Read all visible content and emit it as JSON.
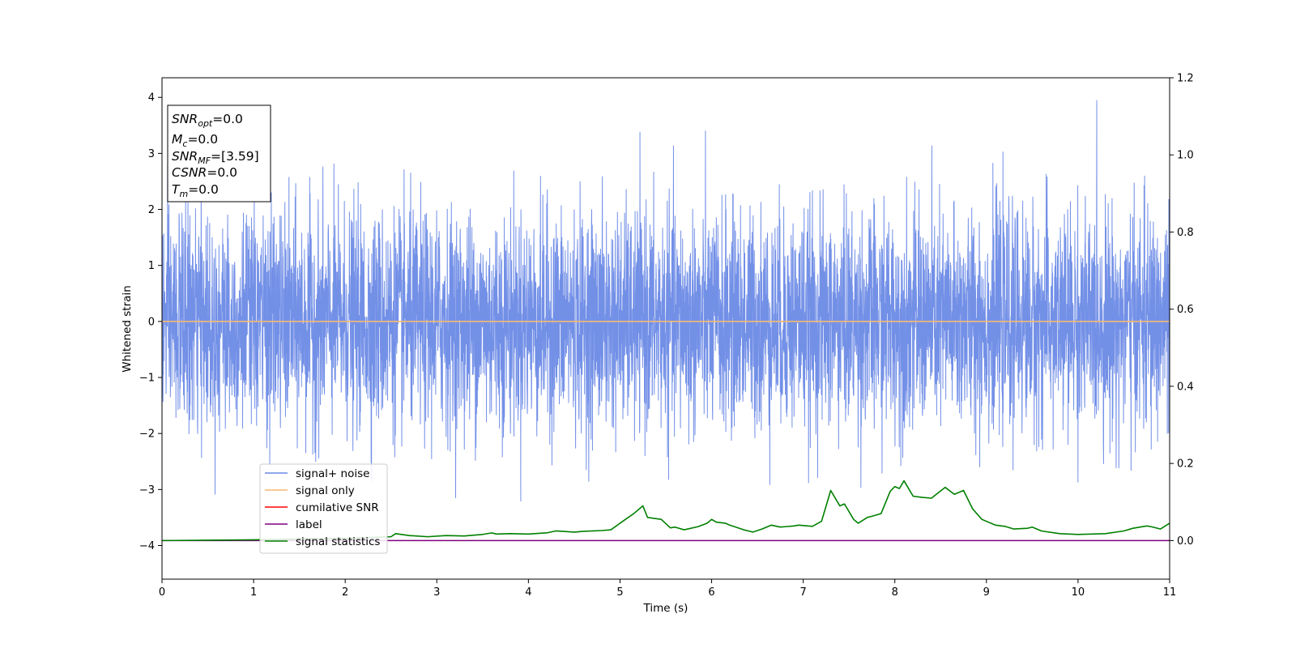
{
  "chart_data": {
    "type": "line",
    "xlabel": "Time (s)",
    "ylabel": "Whitened strain",
    "xlim": [
      0,
      11
    ],
    "ylim_left": [
      -4.6,
      4.35
    ],
    "ylim_right": [
      -0.1,
      1.2
    ],
    "x_ticks": [
      0,
      1,
      2,
      3,
      4,
      5,
      6,
      7,
      8,
      9,
      10,
      11
    ],
    "y_ticks_left": [
      -4,
      -3,
      -2,
      -1,
      0,
      1,
      2,
      3,
      4
    ],
    "y_ticks_right": [
      0.0,
      0.2,
      0.4,
      0.6,
      0.8,
      1.0,
      1.2
    ],
    "grid": false,
    "legend_position": "lower-left",
    "info_box": [
      {
        "base": "SNR",
        "sub": "opt",
        "value": "=0.0"
      },
      {
        "base": "M",
        "sub": "c",
        "value": "=0.0"
      },
      {
        "base": "SNR",
        "sub": "MF",
        "value": "=[3.59]"
      },
      {
        "base": "CSNR",
        "sub": "",
        "value": "=0.0"
      },
      {
        "base": "T",
        "sub": "m",
        "value": "=0.0"
      }
    ],
    "series": [
      {
        "name": "signal+ noise",
        "axis": "left",
        "color": "#6b8ae6",
        "description_values": {
          "mean": 0.0,
          "std": 0.95,
          "min": -4.15,
          "max": 3.95
        }
      },
      {
        "name": "signal only",
        "axis": "left",
        "color": "#f5b971",
        "x": [
          0,
          11
        ],
        "y": [
          0,
          0
        ]
      },
      {
        "name": "cumilative SNR",
        "axis": "right",
        "color": "#ff0000",
        "x": [],
        "y": []
      },
      {
        "name": "label",
        "axis": "right",
        "color": "#800080",
        "x": [
          0,
          11
        ],
        "y": [
          0,
          0
        ]
      },
      {
        "name": "signal statistics",
        "axis": "right",
        "color": "#008000",
        "x": [
          0,
          0.5,
          1.0,
          1.5,
          2.0,
          2.3,
          2.5,
          2.55,
          2.7,
          2.9,
          3.1,
          3.3,
          3.5,
          3.6,
          3.65,
          3.8,
          4.0,
          4.2,
          4.3,
          4.5,
          4.6,
          4.8,
          4.9,
          5.0,
          5.15,
          5.25,
          5.3,
          5.45,
          5.55,
          5.6,
          5.7,
          5.85,
          5.95,
          6.0,
          6.05,
          6.15,
          6.2,
          6.35,
          6.45,
          6.55,
          6.65,
          6.75,
          6.8,
          6.9,
          6.95,
          7.1,
          7.2,
          7.3,
          7.4,
          7.45,
          7.55,
          7.6,
          7.7,
          7.75,
          7.85,
          7.95,
          8.0,
          8.05,
          8.1,
          8.2,
          8.3,
          8.4,
          8.55,
          8.65,
          8.75,
          8.85,
          8.95,
          9.1,
          9.2,
          9.3,
          9.45,
          9.5,
          9.6,
          9.8,
          10.0,
          10.15,
          10.3,
          10.5,
          10.6,
          10.75,
          10.8,
          10.9,
          11.0
        ],
        "y": [
          0.0,
          0.001,
          0.002,
          0.004,
          0.006,
          0.008,
          0.01,
          0.018,
          0.013,
          0.01,
          0.013,
          0.012,
          0.016,
          0.02,
          0.017,
          0.018,
          0.017,
          0.02,
          0.025,
          0.022,
          0.024,
          0.026,
          0.028,
          0.045,
          0.07,
          0.09,
          0.06,
          0.055,
          0.033,
          0.035,
          0.028,
          0.036,
          0.045,
          0.055,
          0.048,
          0.045,
          0.04,
          0.028,
          0.022,
          0.03,
          0.04,
          0.035,
          0.036,
          0.038,
          0.04,
          0.037,
          0.05,
          0.13,
          0.09,
          0.095,
          0.055,
          0.045,
          0.06,
          0.063,
          0.07,
          0.128,
          0.14,
          0.135,
          0.155,
          0.115,
          0.112,
          0.11,
          0.138,
          0.12,
          0.13,
          0.082,
          0.055,
          0.04,
          0.037,
          0.03,
          0.032,
          0.035,
          0.025,
          0.018,
          0.016,
          0.017,
          0.018,
          0.025,
          0.032,
          0.038,
          0.036,
          0.03,
          0.045
        ]
      }
    ]
  }
}
